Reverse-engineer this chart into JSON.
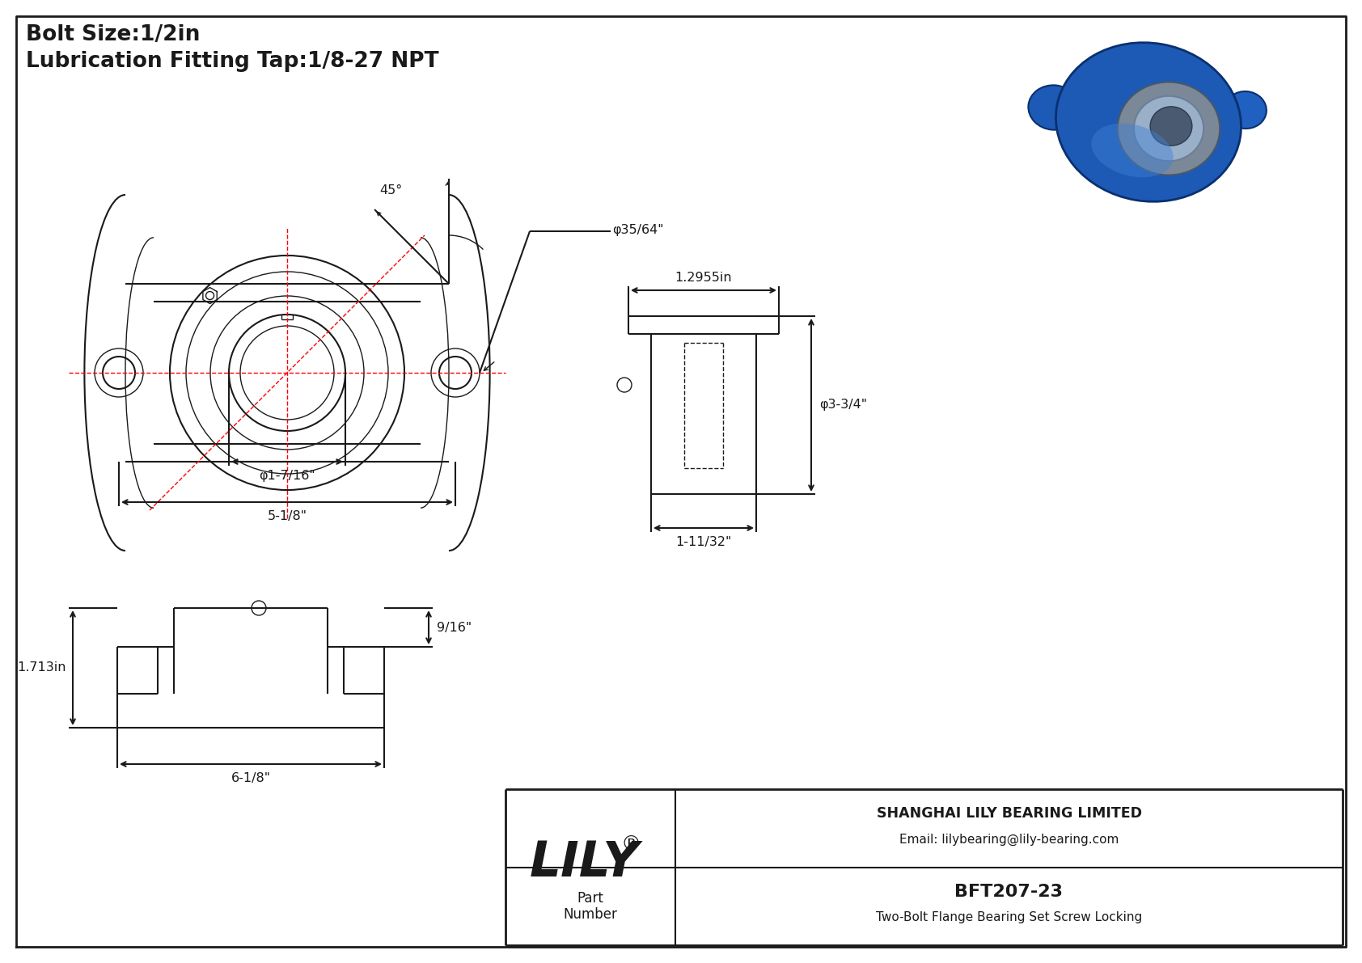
{
  "bg_color": "#ffffff",
  "line_color": "#1a1a1a",
  "red_color": "#ff0000",
  "title_line1": "Bolt Size:1/2in",
  "title_line2": "Lubrication Fitting Tap:1/8-27 NPT",
  "title_fontsize": 19,
  "company_name": "SHANGHAI LILY BEARING LIMITED",
  "company_email": "Email: lilybearing@lily-bearing.com",
  "brand": "LILY",
  "part_number": "BFT207-23",
  "part_desc": "Two-Bolt Flange Bearing Set Screw Locking",
  "dim_top_width": "5-1/8\"",
  "dim_bore": "φ1-7/16\"",
  "dim_set_screw": "φ35/64\"",
  "dim_angle": "45°",
  "dim_side_width": "1.2955in",
  "dim_side_height": "φ3-3/4\"",
  "dim_side_depth": "1-11/32\"",
  "dim_front_width": "6-1/8\"",
  "dim_front_height": "1.713in",
  "dim_front_depth": "9/16\""
}
